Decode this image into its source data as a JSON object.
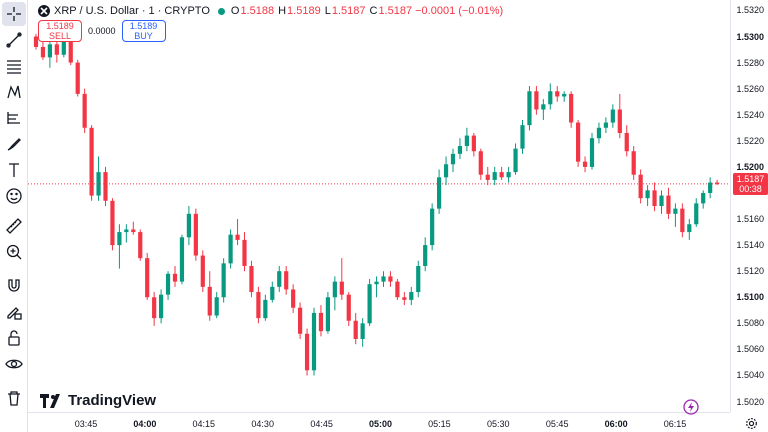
{
  "header": {
    "symbol_title": "XRP / U.S. Dollar · 1 · CRYPTO",
    "ohlc": [
      {
        "label": "O",
        "value": "1.5188"
      },
      {
        "label": "H",
        "value": "1.5189"
      },
      {
        "label": "L",
        "value": "1.5187"
      },
      {
        "label": "C",
        "value": "1.5187 −0.0001 (−0.01%)"
      }
    ]
  },
  "trade": {
    "sell_price": "1.5189",
    "sell_label": "SELL",
    "spread": "0.0000",
    "buy_price": "1.5189",
    "buy_label": "BUY"
  },
  "price_axis": {
    "labels": [
      "1.5320",
      "1.5300",
      "1.5280",
      "1.5260",
      "1.5240",
      "1.5220",
      "1.5200",
      "1.5160",
      "1.5140",
      "1.5120",
      "1.5100",
      "1.5080",
      "1.5060",
      "1.5040",
      "1.5020"
    ],
    "bold": [
      "1.5300",
      "1.5200",
      "1.5100"
    ],
    "current_price": "1.5187",
    "countdown": "00:38"
  },
  "time_axis": {
    "labels": [
      "03:45",
      "04:00",
      "04:15",
      "04:30",
      "04:45",
      "05:00",
      "05:15",
      "05:30",
      "05:45",
      "06:00",
      "06:15"
    ],
    "bold": [
      "04:00",
      "05:00",
      "06:00"
    ]
  },
  "watermark": "TradingView",
  "colors": {
    "up": "#089981",
    "down": "#f23645",
    "accent": "#2962ff"
  },
  "chart_data": {
    "type": "candlestick",
    "ylim": [
      1.5012,
      1.5328
    ],
    "candles_ohlc": [
      [
        1.53,
        1.5302,
        1.529,
        1.5292
      ],
      [
        1.5292,
        1.5298,
        1.5282,
        1.5284
      ],
      [
        1.5284,
        1.5296,
        1.5276,
        1.5294
      ],
      [
        1.5294,
        1.53,
        1.528,
        1.5286
      ],
      [
        1.5286,
        1.5302,
        1.5284,
        1.5298
      ],
      [
        1.5298,
        1.5304,
        1.5278,
        1.528
      ],
      [
        1.528,
        1.5282,
        1.5254,
        1.5256
      ],
      [
        1.5256,
        1.526,
        1.5226,
        1.523
      ],
      [
        1.523,
        1.5232,
        1.5174,
        1.5178
      ],
      [
        1.5178,
        1.5208,
        1.5174,
        1.5196
      ],
      [
        1.5196,
        1.52,
        1.517,
        1.5174
      ],
      [
        1.5174,
        1.5176,
        1.5136,
        1.514
      ],
      [
        1.514,
        1.5156,
        1.5122,
        1.515
      ],
      [
        1.515,
        1.5156,
        1.5142,
        1.5152
      ],
      [
        1.5152,
        1.5158,
        1.5148,
        1.515
      ],
      [
        1.515,
        1.5152,
        1.5128,
        1.513
      ],
      [
        1.513,
        1.5134,
        1.5098,
        1.51
      ],
      [
        1.51,
        1.5104,
        1.5078,
        1.5084
      ],
      [
        1.5084,
        1.5106,
        1.508,
        1.5102
      ],
      [
        1.5102,
        1.512,
        1.5098,
        1.5118
      ],
      [
        1.5118,
        1.5124,
        1.5108,
        1.5112
      ],
      [
        1.5112,
        1.5148,
        1.511,
        1.5146
      ],
      [
        1.5146,
        1.517,
        1.514,
        1.5164
      ],
      [
        1.5164,
        1.5168,
        1.5128,
        1.5132
      ],
      [
        1.5132,
        1.5136,
        1.5104,
        1.5108
      ],
      [
        1.5108,
        1.512,
        1.5082,
        1.5086
      ],
      [
        1.5086,
        1.5104,
        1.5084,
        1.51
      ],
      [
        1.51,
        1.513,
        1.5096,
        1.5126
      ],
      [
        1.5126,
        1.5152,
        1.5122,
        1.5148
      ],
      [
        1.5148,
        1.516,
        1.514,
        1.5144
      ],
      [
        1.5144,
        1.515,
        1.512,
        1.5124
      ],
      [
        1.5124,
        1.5128,
        1.51,
        1.5104
      ],
      [
        1.5104,
        1.5108,
        1.508,
        1.5084
      ],
      [
        1.5084,
        1.5102,
        1.5082,
        1.5098
      ],
      [
        1.5098,
        1.5112,
        1.5096,
        1.5108
      ],
      [
        1.5108,
        1.5124,
        1.5104,
        1.512
      ],
      [
        1.512,
        1.5124,
        1.5102,
        1.5106
      ],
      [
        1.5106,
        1.511,
        1.5088,
        1.5092
      ],
      [
        1.5092,
        1.5096,
        1.5068,
        1.5072
      ],
      [
        1.5072,
        1.5076,
        1.504,
        1.5044
      ],
      [
        1.5044,
        1.5092,
        1.504,
        1.5088
      ],
      [
        1.5088,
        1.5094,
        1.507,
        1.5074
      ],
      [
        1.5074,
        1.5104,
        1.5072,
        1.51
      ],
      [
        1.51,
        1.5116,
        1.509,
        1.5112
      ],
      [
        1.5112,
        1.513,
        1.5098,
        1.5102
      ],
      [
        1.5102,
        1.5104,
        1.5078,
        1.5082
      ],
      [
        1.5082,
        1.5088,
        1.5064,
        1.5068
      ],
      [
        1.5068,
        1.5084,
        1.5062,
        1.508
      ],
      [
        1.508,
        1.5114,
        1.5078,
        1.511
      ],
      [
        1.511,
        1.5116,
        1.51,
        1.5112
      ],
      [
        1.5112,
        1.512,
        1.5108,
        1.5116
      ],
      [
        1.5116,
        1.512,
        1.5108,
        1.5112
      ],
      [
        1.5112,
        1.5114,
        1.5098,
        1.51
      ],
      [
        1.51,
        1.5104,
        1.5094,
        1.5098
      ],
      [
        1.5098,
        1.5108,
        1.5094,
        1.5104
      ],
      [
        1.5104,
        1.5128,
        1.51,
        1.5124
      ],
      [
        1.5124,
        1.5146,
        1.512,
        1.514
      ],
      [
        1.514,
        1.5172,
        1.5136,
        1.5168
      ],
      [
        1.5168,
        1.5198,
        1.5164,
        1.5192
      ],
      [
        1.5192,
        1.5208,
        1.5186,
        1.5202
      ],
      [
        1.5202,
        1.5214,
        1.5196,
        1.521
      ],
      [
        1.521,
        1.5222,
        1.5206,
        1.5216
      ],
      [
        1.5216,
        1.523,
        1.5212,
        1.5224
      ],
      [
        1.5224,
        1.5226,
        1.5208,
        1.5212
      ],
      [
        1.5212,
        1.5214,
        1.519,
        1.5194
      ],
      [
        1.5194,
        1.52,
        1.5186,
        1.519
      ],
      [
        1.519,
        1.52,
        1.5186,
        1.5196
      ],
      [
        1.5196,
        1.52,
        1.519,
        1.5192
      ],
      [
        1.5192,
        1.52,
        1.5188,
        1.5196
      ],
      [
        1.5196,
        1.5218,
        1.5194,
        1.5214
      ],
      [
        1.5214,
        1.5236,
        1.521,
        1.5232
      ],
      [
        1.5232,
        1.5262,
        1.5228,
        1.5258
      ],
      [
        1.5258,
        1.5262,
        1.524,
        1.5244
      ],
      [
        1.5244,
        1.5252,
        1.5236,
        1.5248
      ],
      [
        1.5248,
        1.5264,
        1.5244,
        1.5258
      ],
      [
        1.5258,
        1.5262,
        1.525,
        1.5254
      ],
      [
        1.5254,
        1.5258,
        1.525,
        1.5256
      ],
      [
        1.5256,
        1.5258,
        1.523,
        1.5234
      ],
      [
        1.5234,
        1.5236,
        1.52,
        1.5204
      ],
      [
        1.5204,
        1.5208,
        1.5196,
        1.52
      ],
      [
        1.52,
        1.5226,
        1.5198,
        1.5222
      ],
      [
        1.5222,
        1.5234,
        1.5218,
        1.523
      ],
      [
        1.523,
        1.5238,
        1.5226,
        1.5234
      ],
      [
        1.5234,
        1.5248,
        1.523,
        1.5244
      ],
      [
        1.5244,
        1.5256,
        1.5222,
        1.5226
      ],
      [
        1.5226,
        1.5232,
        1.5208,
        1.5212
      ],
      [
        1.5212,
        1.5216,
        1.519,
        1.5194
      ],
      [
        1.5194,
        1.5198,
        1.5172,
        1.5176
      ],
      [
        1.5176,
        1.5186,
        1.517,
        1.5182
      ],
      [
        1.5182,
        1.5188,
        1.5166,
        1.517
      ],
      [
        1.517,
        1.5182,
        1.5164,
        1.5178
      ],
      [
        1.5178,
        1.5184,
        1.516,
        1.5164
      ],
      [
        1.5164,
        1.5172,
        1.5154,
        1.5168
      ],
      [
        1.5168,
        1.5172,
        1.5146,
        1.515
      ],
      [
        1.515,
        1.516,
        1.5144,
        1.5156
      ],
      [
        1.5156,
        1.5176,
        1.5154,
        1.5172
      ],
      [
        1.5172,
        1.5182,
        1.5168,
        1.518
      ],
      [
        1.518,
        1.5192,
        1.5176,
        1.5188
      ],
      [
        1.5188,
        1.519,
        1.5186,
        1.5187
      ]
    ]
  }
}
